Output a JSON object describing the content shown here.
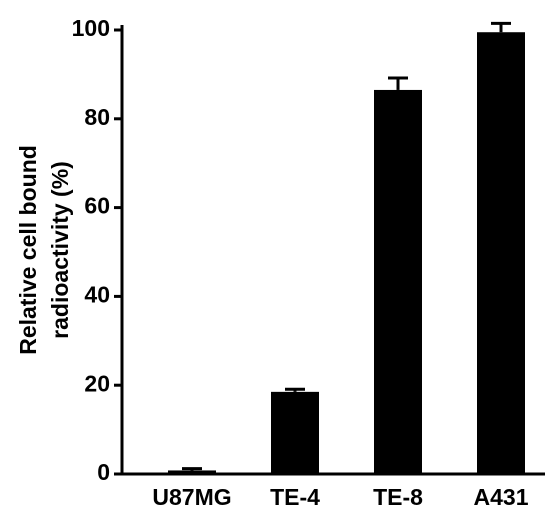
{
  "chart_data": {
    "type": "bar",
    "ylabel": [
      "Relative cell bound",
      "radioactivity (%)"
    ],
    "categories": [
      "U87MG",
      "TE-4",
      "TE-8",
      "A431"
    ],
    "values": [
      0.8,
      18.5,
      86.5,
      99.5
    ],
    "errors": [
      0.4,
      0.6,
      2.7,
      2
    ],
    "color": "#000000",
    "ylim": [
      0,
      100
    ],
    "yticks": [
      0,
      20,
      40,
      60,
      80,
      100
    ],
    "grid": false
  }
}
